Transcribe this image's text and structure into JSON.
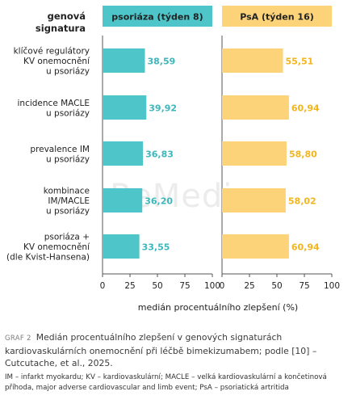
{
  "chart_data": {
    "type": "bar",
    "orientation": "horizontal",
    "row_header": [
      "genová",
      "signatura"
    ],
    "categories": [
      [
        "klíčové regulátory",
        "KV onemocnění",
        "u psoriázy"
      ],
      [
        "incidence MACLE",
        "u psoriázy"
      ],
      [
        "prevalence IM",
        "u psoriázy"
      ],
      [
        "kombinace",
        "IM/MACLE",
        "u psoriázy"
      ],
      [
        "psoriáza +",
        "KV onemocnění",
        "(dle Kvist-Hansena)"
      ]
    ],
    "series": [
      {
        "name": "psoriáza (týden 8)",
        "values": [
          38.59,
          39.92,
          36.83,
          36.2,
          33.55
        ],
        "labels": [
          "38,59",
          "39,92",
          "36,83",
          "36,20",
          "33,55"
        ]
      },
      {
        "name": "PsA (týden 16)",
        "values": [
          55.51,
          60.94,
          58.8,
          58.02,
          60.94
        ],
        "labels": [
          "55,51",
          "60,94",
          "58,80",
          "58,02",
          "60,94"
        ]
      }
    ],
    "xlim": [
      0,
      100
    ],
    "xticks": [
      "0",
      "25",
      "50",
      "75",
      "100"
    ],
    "xlabel": "medián procentuálního zlepšení (%)",
    "colors": {
      "series1_bar": "#4dc5c9",
      "series1_label": "#3cb8bd",
      "series2_bar": "#fdd37a",
      "series2_label": "#f2b51c",
      "axis": "#555555",
      "text": "#222222"
    },
    "watermark": "ReMedia"
  },
  "caption": {
    "label": "GRAF 2",
    "text": "Medián procentuálního zlepšení v genových signaturách kardiovaskulárních onemocnění při léčbě bimekizumabem; podle [10] – Cutcutache, et al., 2025.",
    "abbreviations": "IM – infarkt myokardu; KV – kardiovaskulární; MACLE – velká kardiovaskulární a končetinová příhoda, major adverse cardiovascular and limb event; PsA – psoriatická artritida"
  }
}
